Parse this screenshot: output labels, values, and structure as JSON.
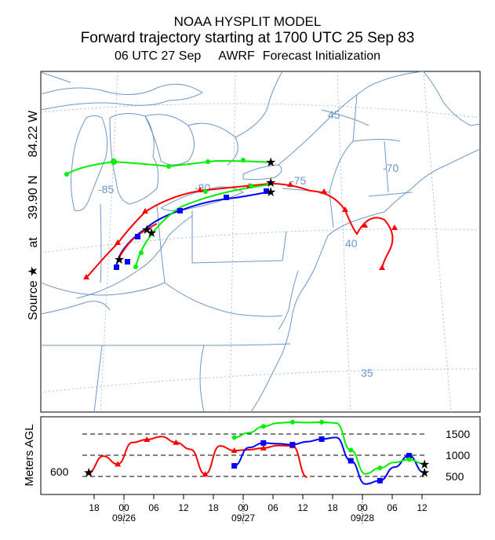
{
  "title": {
    "line1": "NOAA HYSPLIT MODEL",
    "line2": "Forward trajectory starting at 1700 UTC 25 Sep 83",
    "line3_time": "06 UTC 27 Sep",
    "line3_model": "AWRF",
    "line3_desc": "Forecast Initialization"
  },
  "source_label": {
    "word": "Source",
    "star": "★",
    "at": "at",
    "lat": "39.90 N",
    "lon": "84.22 W"
  },
  "map": {
    "meridian_labels": [
      "-85",
      "-80",
      "-75",
      "-70"
    ],
    "parallel_labels": [
      "45",
      "40",
      "35"
    ]
  },
  "height_panel": {
    "ylabel": "Meters AGL",
    "start_height_label": "600",
    "ref_labels": [
      "1500",
      "1000",
      "500"
    ],
    "time_ticks": [
      "18",
      "00",
      "06",
      "12",
      "18",
      "00",
      "06",
      "12",
      "18",
      "00",
      "06",
      "12"
    ],
    "date_labels": [
      "09/26",
      "09/27",
      "09/28"
    ]
  },
  "colors": {
    "red": "#ff0000",
    "blue": "#0000ff",
    "green": "#00ee00",
    "map_lines": "#6e96c8",
    "grid": "#8fb4dc"
  },
  "chart_data": {
    "type": "line",
    "title": "",
    "xlabel": "",
    "ylabel": "Meters AGL",
    "series": [
      {
        "color": "red",
        "values": [
          [
            17,
            600
          ],
          [
            23,
            980
          ],
          [
            29,
            790
          ],
          [
            35,
            1300
          ],
          [
            41,
            1370
          ],
          [
            47,
            1440
          ],
          [
            53,
            1300
          ],
          [
            59,
            1140
          ],
          [
            65,
            550
          ],
          [
            71,
            1220
          ],
          [
            77,
            1110
          ],
          [
            83,
            1130
          ],
          [
            89,
            1170
          ],
          [
            95,
            1230
          ],
          [
            101,
            1220
          ],
          [
            107,
            480
          ]
        ]
      },
      {
        "color": "blue",
        "values": [
          [
            77,
            750
          ],
          [
            83,
            1180
          ],
          [
            89,
            1290
          ],
          [
            95,
            1270
          ],
          [
            101,
            1250
          ],
          [
            107,
            1320
          ],
          [
            113,
            1380
          ],
          [
            119,
            1420
          ],
          [
            125,
            870
          ],
          [
            131,
            320
          ],
          [
            137,
            400
          ],
          [
            143,
            720
          ],
          [
            149,
            990
          ],
          [
            155,
            600
          ]
        ]
      },
      {
        "color": "green",
        "values": [
          [
            77,
            1420
          ],
          [
            83,
            1530
          ],
          [
            89,
            1680
          ],
          [
            95,
            1760
          ],
          [
            101,
            1780
          ],
          [
            107,
            1770
          ],
          [
            113,
            1780
          ],
          [
            119,
            1760
          ],
          [
            125,
            1120
          ],
          [
            131,
            560
          ],
          [
            137,
            700
          ],
          [
            143,
            830
          ],
          [
            149,
            900
          ],
          [
            155,
            800
          ]
        ]
      }
    ]
  }
}
